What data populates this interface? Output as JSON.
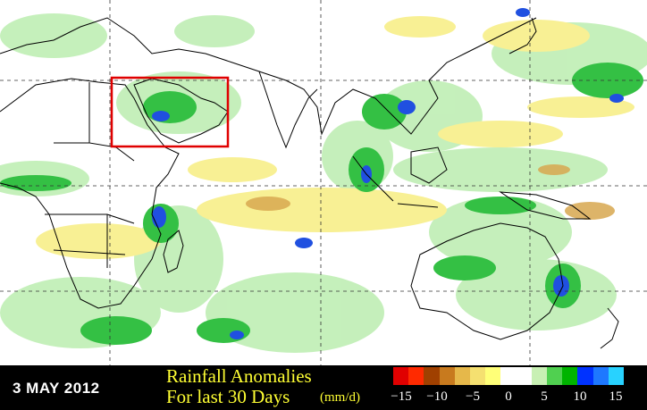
{
  "date_label": "3 MAY 2012",
  "title_line1": "Rainfall Anomalies",
  "title_line2": "For last 30 Days",
  "unit": "(mm/d)",
  "colorbar": {
    "colors": [
      "#e00000",
      "#ff2a00",
      "#a04000",
      "#c87a1e",
      "#e6b84a",
      "#f5e070",
      "#ffff78",
      "#ffffff",
      "#ffffff",
      "#c8f0b4",
      "#50d050",
      "#00b400",
      "#0032ff",
      "#1e78ff",
      "#28d2ff"
    ],
    "ticks": [
      "−15",
      "−10",
      "−5",
      "0",
      "5",
      "10",
      "15"
    ]
  },
  "highlight_box_color": "#e00000",
  "anomaly_colors": {
    "wet_light": "#b8ecb0",
    "wet": "#30c040",
    "very_wet": "#2050e0",
    "dry_light": "#f8f090",
    "dry": "#d8a040"
  }
}
